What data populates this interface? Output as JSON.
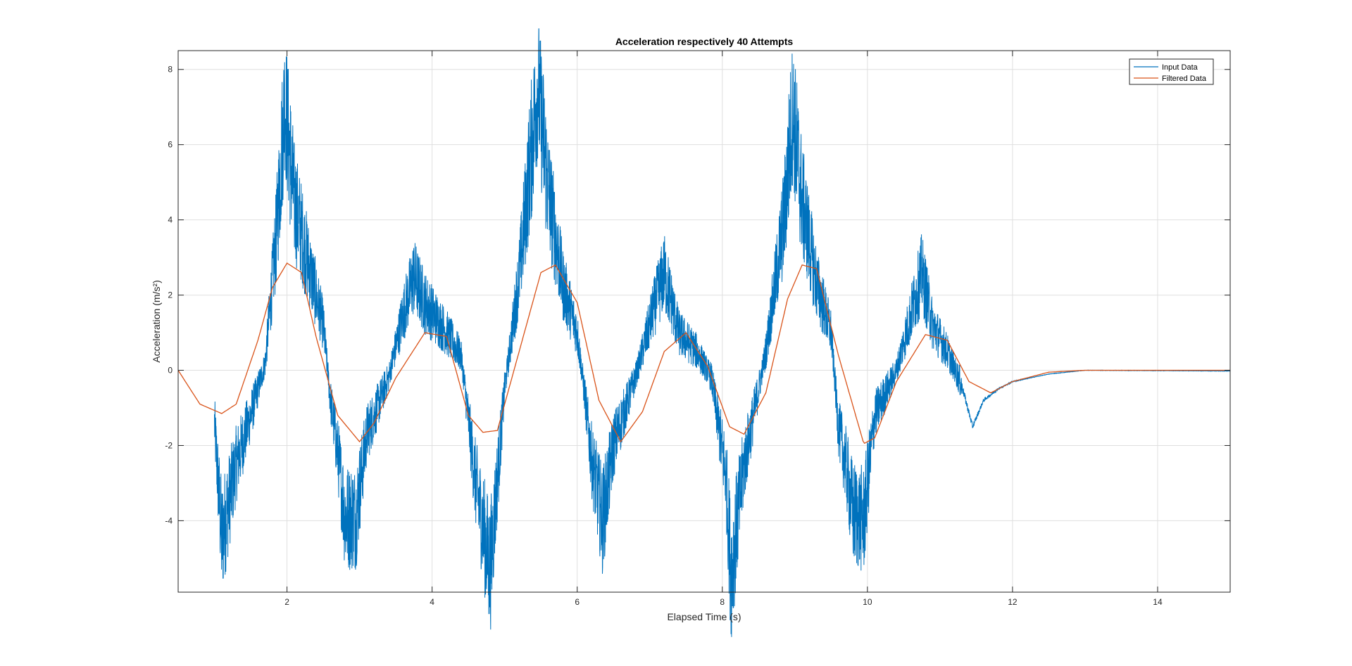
{
  "chart_data": {
    "type": "line",
    "title": "Acceleration respectively 40 Attempts",
    "xlabel": "Elapsed Time (s)",
    "ylabel": "Acceleration (m/s²)",
    "xlim": [
      0.5,
      15
    ],
    "ylim": [
      -5.9,
      8.5
    ],
    "xticks": [
      2,
      4,
      6,
      8,
      10,
      12,
      14
    ],
    "yticks": [
      -4,
      -2,
      0,
      2,
      4,
      6,
      8
    ],
    "grid": true,
    "legend_position": "top-right",
    "colors": {
      "input": "#0072BD",
      "filtered": "#D95319",
      "axes": "#262626",
      "grid": "#dfdfdf"
    },
    "series": [
      {
        "name": "Input Data",
        "x": [
          1.0,
          1.1,
          1.3,
          1.5,
          1.7,
          1.85,
          1.97,
          2.1,
          2.3,
          2.5,
          2.6,
          2.7,
          2.8,
          2.95,
          3.1,
          3.4,
          3.6,
          3.75,
          3.9,
          4.2,
          4.4,
          4.6,
          4.8,
          5.0,
          5.2,
          5.35,
          5.46,
          5.6,
          5.8,
          6.0,
          6.1,
          6.2,
          6.35,
          6.5,
          6.8,
          7.05,
          7.2,
          7.4,
          7.65,
          7.85,
          8.05,
          8.12,
          8.3,
          8.6,
          8.85,
          8.97,
          9.1,
          9.3,
          9.5,
          9.6,
          9.7,
          9.8,
          9.95,
          10.1,
          10.4,
          10.6,
          10.75,
          10.9,
          11.1,
          11.3,
          11.45,
          11.6,
          11.8,
          12.0,
          12.5,
          13.0,
          14.0,
          15.0
        ],
        "y": [
          -1.4,
          -4.5,
          -2.5,
          -1.2,
          0.2,
          3.5,
          7.2,
          4.5,
          2.8,
          1.2,
          -0.8,
          -2.2,
          -3.9,
          -3.9,
          -1.7,
          -0.2,
          1.5,
          2.5,
          1.8,
          1.0,
          0.4,
          -3.0,
          -5.3,
          -0.5,
          2.5,
          5.5,
          7.6,
          4.8,
          2.3,
          1.0,
          -0.6,
          -2.4,
          -4.0,
          -2.0,
          -0.2,
          1.6,
          2.6,
          1.0,
          0.5,
          -0.2,
          -2.8,
          -5.4,
          -2.5,
          0.5,
          4.0,
          6.9,
          4.5,
          2.3,
          1.0,
          -1.5,
          -2.5,
          -3.8,
          -4.0,
          -1.2,
          0.0,
          1.5,
          2.6,
          1.2,
          0.5,
          -0.4,
          -1.5,
          -0.8,
          -0.5,
          -0.3,
          -0.1,
          0.0,
          -0.01,
          -0.02
        ]
      },
      {
        "name": "Filtered Data",
        "x": [
          0.5,
          0.8,
          1.1,
          1.3,
          1.6,
          1.8,
          2.0,
          2.2,
          2.4,
          2.7,
          3.0,
          3.2,
          3.5,
          3.9,
          4.2,
          4.5,
          4.7,
          4.9,
          5.2,
          5.5,
          5.7,
          6.0,
          6.3,
          6.6,
          6.9,
          7.2,
          7.5,
          7.8,
          8.1,
          8.3,
          8.6,
          8.9,
          9.1,
          9.3,
          9.6,
          9.95,
          10.1,
          10.4,
          10.8,
          11.1,
          11.4,
          11.7,
          12.0,
          12.5,
          13.0,
          15.0
        ],
        "y": [
          0.0,
          -0.9,
          -1.15,
          -0.9,
          0.8,
          2.2,
          2.85,
          2.6,
          0.9,
          -1.2,
          -1.9,
          -1.4,
          -0.2,
          1.0,
          0.9,
          -1.2,
          -1.65,
          -1.6,
          0.5,
          2.6,
          2.8,
          1.8,
          -0.8,
          -1.9,
          -1.1,
          0.5,
          1.0,
          0.1,
          -1.5,
          -1.7,
          -0.6,
          1.9,
          2.8,
          2.7,
          0.4,
          -1.95,
          -1.8,
          -0.3,
          0.95,
          0.8,
          -0.3,
          -0.6,
          -0.3,
          -0.05,
          0.0,
          0.0
        ]
      }
    ]
  }
}
